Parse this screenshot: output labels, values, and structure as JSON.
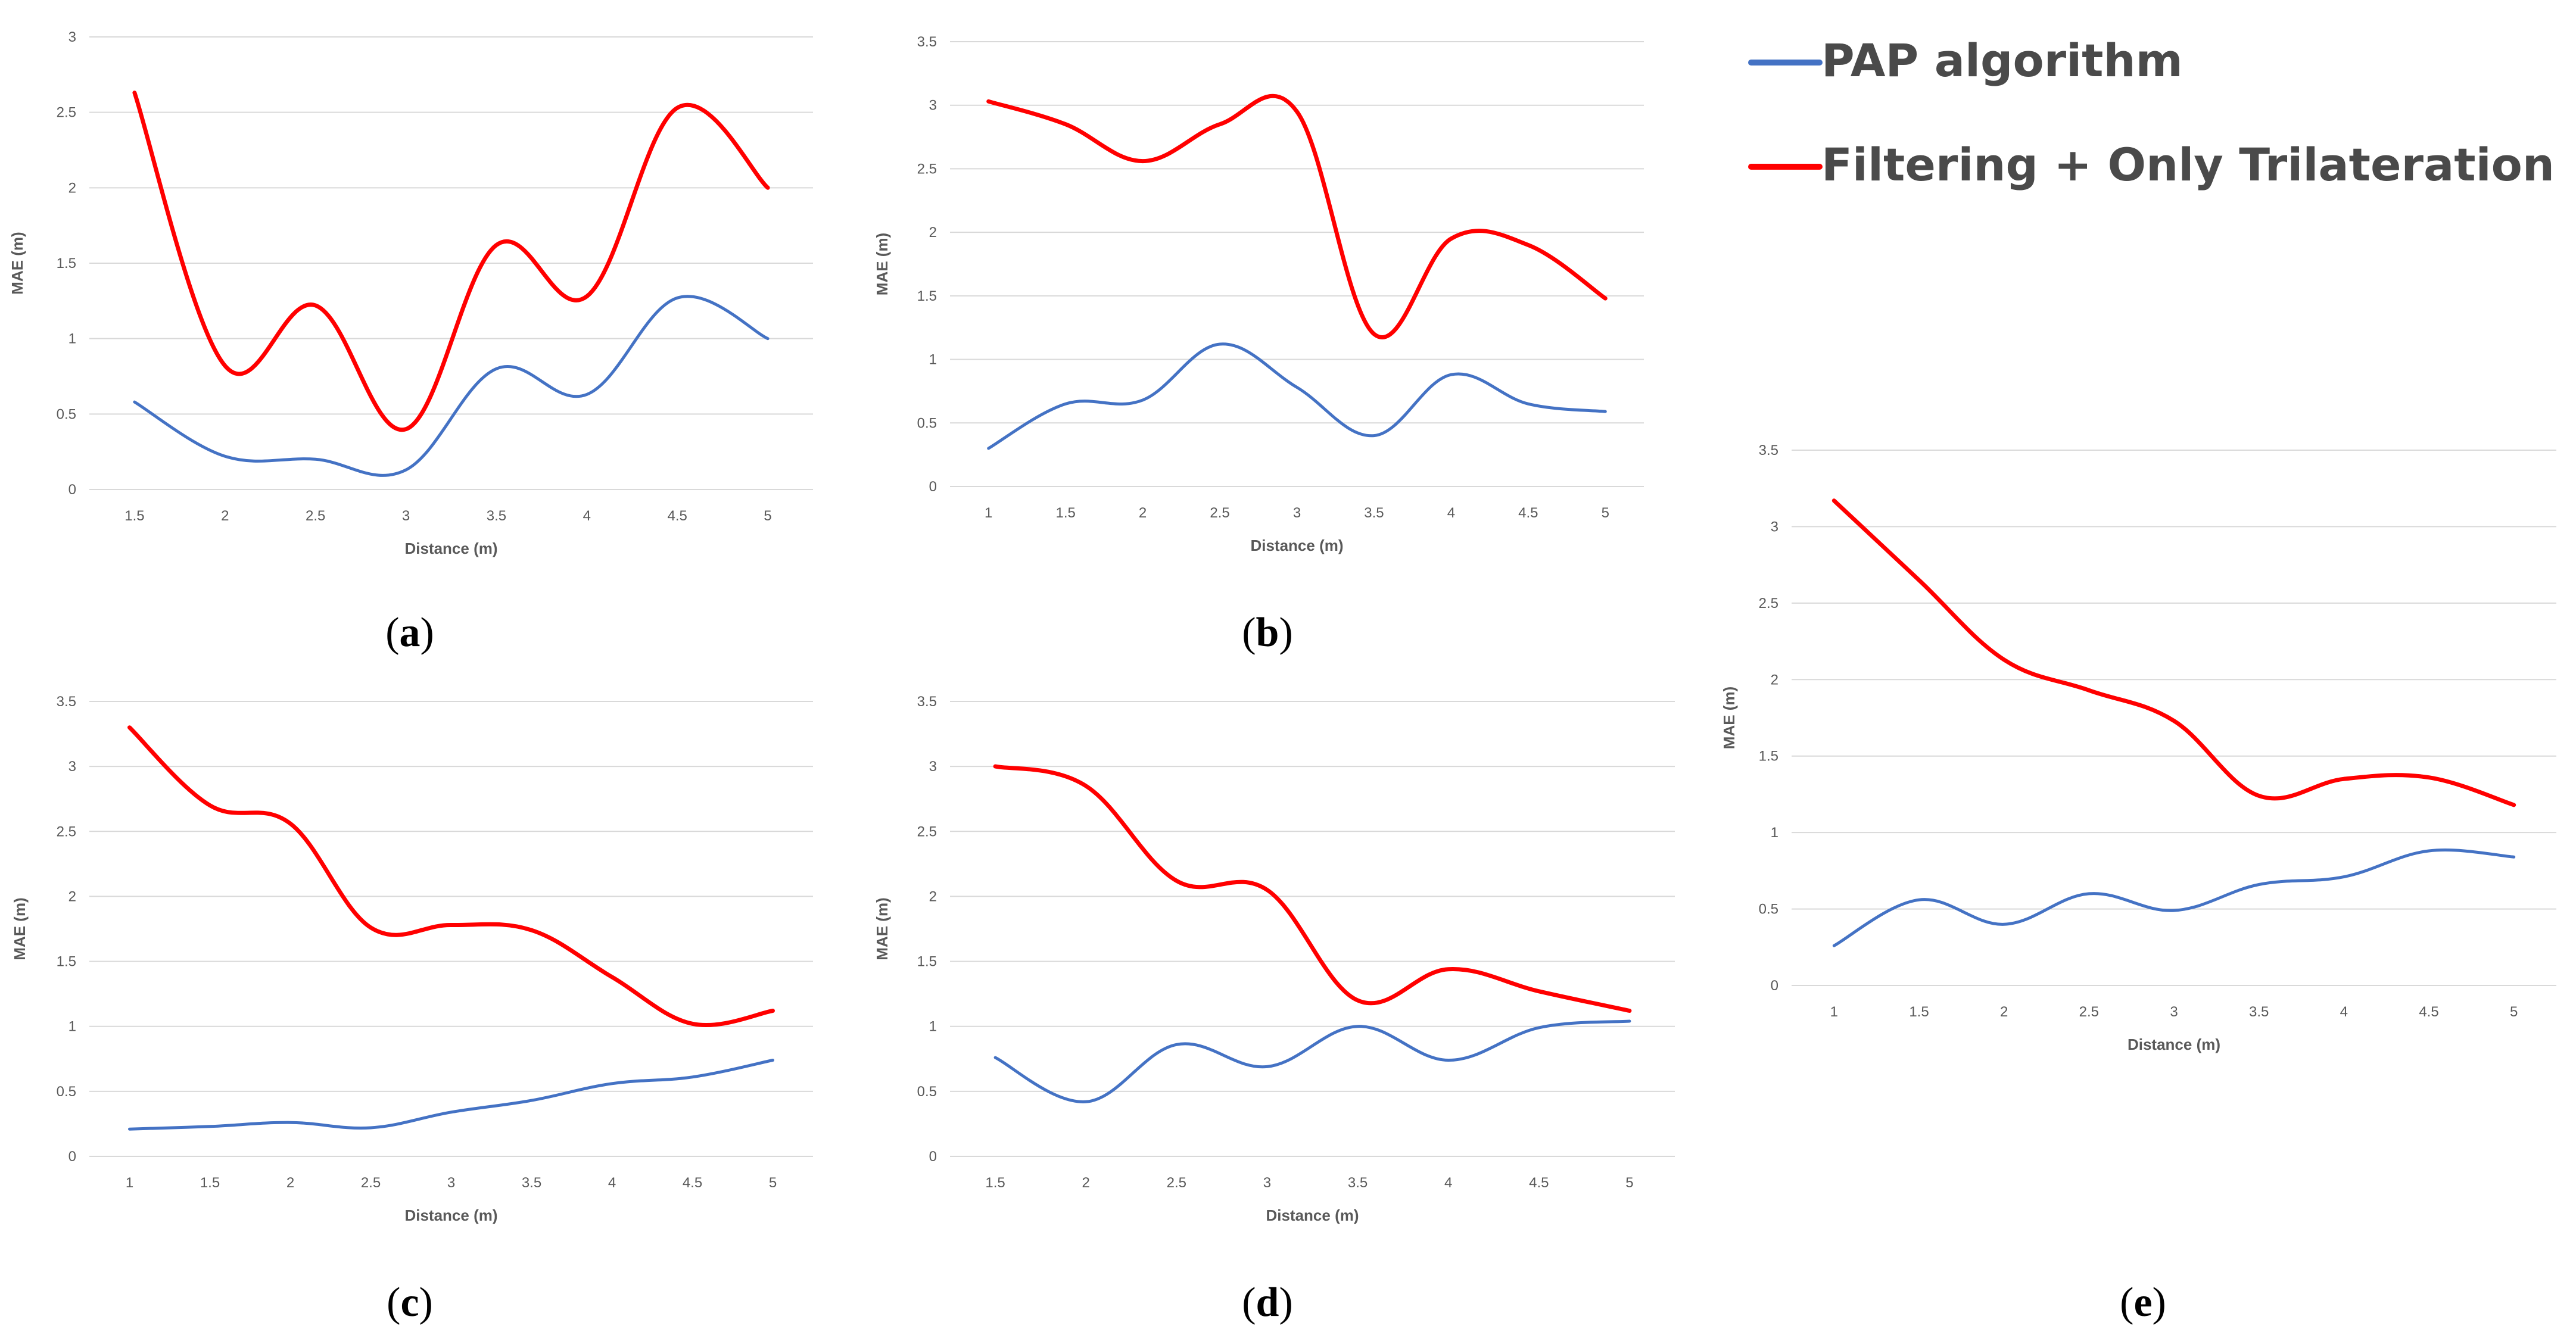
{
  "legend": {
    "items": [
      {
        "name": "PAP algorithm",
        "color": "#4472c4"
      },
      {
        "name": "Filtering + Only Trilateration",
        "color": "#ff0000"
      }
    ]
  },
  "chart_data": [
    {
      "id": "a",
      "type": "line",
      "caption": {
        "open": "(",
        "letter": "a",
        "close": ")"
      },
      "xlabel": "Distance (m)",
      "ylabel": "MAE (m)",
      "categories": [
        "1.5",
        "2",
        "2.5",
        "3",
        "3.5",
        "4",
        "4.5",
        "5"
      ],
      "y_ticks": [
        "0",
        "0.5",
        "1",
        "1.5",
        "2",
        "2.5",
        "3"
      ],
      "ylim": [
        0,
        3
      ],
      "series": [
        {
          "name": "PAP algorithm",
          "color": "#4472c4",
          "values": [
            0.58,
            0.22,
            0.2,
            0.13,
            0.8,
            0.63,
            1.27,
            1.0
          ]
        },
        {
          "name": "Filtering + Only Trilateration",
          "color": "#ff0000",
          "values": [
            2.63,
            0.82,
            1.22,
            0.4,
            1.62,
            1.28,
            2.53,
            2.0
          ]
        }
      ]
    },
    {
      "id": "b",
      "type": "line",
      "caption": {
        "open": "(",
        "letter": "b",
        "close": ")"
      },
      "xlabel": "Distance (m)",
      "ylabel": "MAE (m)",
      "categories": [
        "1",
        "1.5",
        "2",
        "2.5",
        "3",
        "3.5",
        "4",
        "4.5",
        "5"
      ],
      "y_ticks": [
        "0",
        "0.5",
        "1",
        "1.5",
        "2",
        "2.5",
        "3",
        "3.5"
      ],
      "ylim": [
        0,
        3.5
      ],
      "series": [
        {
          "name": "PAP algorithm",
          "color": "#4472c4",
          "values": [
            0.3,
            0.65,
            0.68,
            1.12,
            0.78,
            0.4,
            0.88,
            0.65,
            0.59
          ]
        },
        {
          "name": "Filtering + Only Trilateration",
          "color": "#ff0000",
          "values": [
            3.03,
            2.85,
            2.56,
            2.85,
            2.95,
            1.2,
            1.95,
            1.9,
            1.48
          ]
        }
      ]
    },
    {
      "id": "c",
      "type": "line",
      "caption": {
        "open": "(",
        "letter": "c",
        "close": ")"
      },
      "xlabel": "Distance (m)",
      "ylabel": "MAE (m)",
      "categories": [
        "1",
        "1.5",
        "2",
        "2.5",
        "3",
        "3.5",
        "4",
        "4.5",
        "5"
      ],
      "y_ticks": [
        "0",
        "0.5",
        "1",
        "1.5",
        "2",
        "2.5",
        "3",
        "3.5"
      ],
      "ylim": [
        0,
        3.5
      ],
      "series": [
        {
          "name": "PAP algorithm",
          "color": "#4472c4",
          "values": [
            0.21,
            0.23,
            0.26,
            0.22,
            0.34,
            0.43,
            0.56,
            0.61,
            0.74
          ]
        },
        {
          "name": "Filtering + Only Trilateration",
          "color": "#ff0000",
          "values": [
            3.3,
            2.7,
            2.56,
            1.76,
            1.78,
            1.74,
            1.38,
            1.02,
            1.12
          ]
        }
      ]
    },
    {
      "id": "d",
      "type": "line",
      "caption": {
        "open": "(",
        "letter": "d",
        "close": ")"
      },
      "xlabel": "Distance (m)",
      "ylabel": "MAE (m)",
      "categories": [
        "1.5",
        "2",
        "2.5",
        "3",
        "3.5",
        "4",
        "4.5",
        "5"
      ],
      "y_ticks": [
        "0",
        "0.5",
        "1",
        "1.5",
        "2",
        "2.5",
        "3",
        "3.5"
      ],
      "ylim": [
        0,
        3.5
      ],
      "series": [
        {
          "name": "PAP algorithm",
          "color": "#4472c4",
          "values": [
            0.76,
            0.42,
            0.86,
            0.69,
            1.0,
            0.74,
            0.99,
            1.04
          ]
        },
        {
          "name": "Filtering + Only Trilateration",
          "color": "#ff0000",
          "values": [
            3.0,
            2.85,
            2.12,
            2.05,
            1.2,
            1.44,
            1.27,
            1.12
          ]
        }
      ]
    },
    {
      "id": "e",
      "type": "line",
      "caption": {
        "open": "(",
        "letter": "e",
        "close": ")"
      },
      "xlabel": "Distance (m)",
      "ylabel": "MAE (m)",
      "categories": [
        "1",
        "1.5",
        "2",
        "2.5",
        "3",
        "3.5",
        "4",
        "4.5",
        "5"
      ],
      "y_ticks": [
        "0",
        "0.5",
        "1",
        "1.5",
        "2",
        "2.5",
        "3",
        "3.5"
      ],
      "ylim": [
        0,
        3.5
      ],
      "series": [
        {
          "name": "PAP algorithm",
          "color": "#4472c4",
          "values": [
            0.26,
            0.56,
            0.4,
            0.6,
            0.49,
            0.66,
            0.71,
            0.88,
            0.84
          ]
        },
        {
          "name": "Filtering + Only Trilateration",
          "color": "#ff0000",
          "values": [
            3.17,
            2.65,
            2.13,
            1.93,
            1.73,
            1.24,
            1.35,
            1.36,
            1.18
          ]
        }
      ]
    }
  ]
}
